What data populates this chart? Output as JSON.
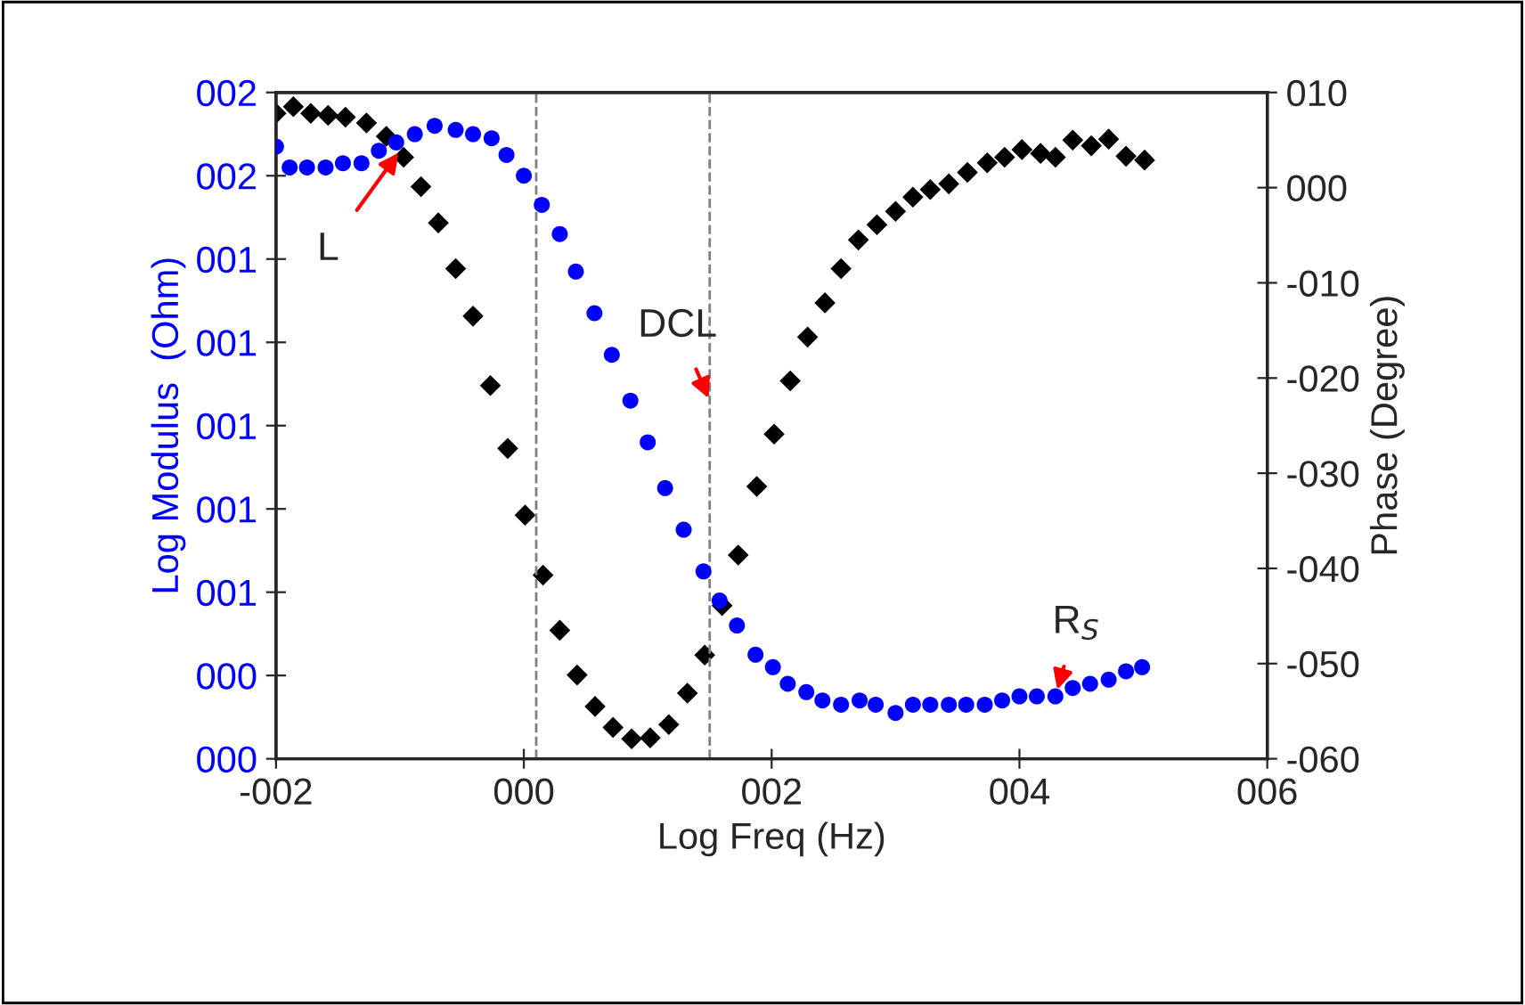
{
  "chart_data": {
    "type": "scatter",
    "xlabel": "Log Freq (Hz)",
    "ylabel": "Log Modulus  (Ohm)",
    "y2label": "Phase (Degree)",
    "xlim": [
      -2,
      6
    ],
    "xticks": [
      {
        "value": -2,
        "label": "-002"
      },
      {
        "value": 0,
        "label": "000"
      },
      {
        "value": 2,
        "label": "002"
      },
      {
        "value": 4,
        "label": "004"
      },
      {
        "value": 6,
        "label": "006"
      }
    ],
    "ylim": [
      0.2,
      1.8
    ],
    "yticks": [
      {
        "value": 0.2,
        "label": "000"
      },
      {
        "value": 0.4,
        "label": "000"
      },
      {
        "value": 0.6,
        "label": "001"
      },
      {
        "value": 0.8,
        "label": "001"
      },
      {
        "value": 1.0,
        "label": "001"
      },
      {
        "value": 1.2,
        "label": "001"
      },
      {
        "value": 1.4,
        "label": "001"
      },
      {
        "value": 1.6,
        "label": "002"
      },
      {
        "value": 1.8,
        "label": "002"
      }
    ],
    "y2lim": [
      -60,
      10
    ],
    "y2ticks": [
      {
        "value": -60,
        "label": "-060"
      },
      {
        "value": -50,
        "label": "-050"
      },
      {
        "value": -40,
        "label": "-040"
      },
      {
        "value": -30,
        "label": "-030"
      },
      {
        "value": -20,
        "label": "-020"
      },
      {
        "value": -10,
        "label": "-010"
      },
      {
        "value": 0,
        "label": "000"
      },
      {
        "value": 10,
        "label": "010"
      }
    ],
    "grid": false,
    "legend": false,
    "series": [
      {
        "color": "#0000ff",
        "marker": "circle",
        "axis": "y",
        "x": [
          -2.0,
          -1.89,
          -1.75,
          -1.6,
          -1.46,
          -1.31,
          -1.17,
          -1.03,
          -0.88,
          -0.72,
          -0.55,
          -0.41,
          -0.26,
          -0.14,
          0.0,
          0.145,
          0.29,
          0.42,
          0.57,
          0.71,
          0.86,
          1.0,
          1.14,
          1.29,
          1.45,
          1.58,
          1.72,
          1.87,
          2.01,
          2.13,
          2.28,
          2.41,
          2.56,
          2.71,
          2.84,
          3.0,
          3.14,
          3.28,
          3.43,
          3.57,
          3.72,
          3.86,
          4.0,
          4.14,
          4.29,
          4.43,
          4.57,
          4.72,
          4.86,
          4.99
        ],
        "values": [
          1.67,
          1.62,
          1.62,
          1.62,
          1.63,
          1.63,
          1.66,
          1.68,
          1.7,
          1.72,
          1.71,
          1.7,
          1.69,
          1.65,
          1.6,
          1.53,
          1.46,
          1.37,
          1.27,
          1.17,
          1.06,
          0.96,
          0.85,
          0.75,
          0.65,
          0.58,
          0.52,
          0.45,
          0.42,
          0.38,
          0.36,
          0.34,
          0.33,
          0.34,
          0.33,
          0.31,
          0.33,
          0.33,
          0.33,
          0.33,
          0.33,
          0.34,
          0.35,
          0.35,
          0.35,
          0.37,
          0.38,
          0.39,
          0.41,
          0.42
        ]
      },
      {
        "color": "#000000",
        "marker": "diamond",
        "axis": "y2",
        "x": [
          -2.0,
          -1.86,
          -1.72,
          -1.58,
          -1.44,
          -1.27,
          -1.11,
          -0.97,
          -0.83,
          -0.69,
          -0.55,
          -0.41,
          -0.27,
          -0.13,
          0.01,
          0.155,
          0.29,
          0.43,
          0.575,
          0.72,
          0.87,
          1.02,
          1.17,
          1.32,
          1.46,
          1.6,
          1.73,
          1.88,
          2.02,
          2.15,
          2.29,
          2.43,
          2.56,
          2.7,
          2.85,
          3.0,
          3.14,
          3.28,
          3.43,
          3.58,
          3.74,
          3.88,
          4.02,
          4.17,
          4.29,
          4.43,
          4.58,
          4.72,
          4.86,
          5.01
        ],
        "values": [
          7.8,
          8.5,
          7.8,
          7.6,
          7.4,
          6.8,
          5.4,
          3.2,
          0.1,
          -3.7,
          -8.5,
          -13.5,
          -20.8,
          -27.4,
          -34.4,
          -40.7,
          -46.5,
          -51.2,
          -54.5,
          -56.7,
          -57.9,
          -57.8,
          -56.4,
          -53.1,
          -49.1,
          -43.9,
          -38.6,
          -31.4,
          -25.9,
          -20.3,
          -15.7,
          -12.1,
          -8.5,
          -5.5,
          -3.9,
          -2.5,
          -1.0,
          -0.2,
          0.4,
          1.6,
          2.6,
          3.2,
          4.0,
          3.6,
          3.2,
          5.0,
          4.4,
          5.1,
          3.3,
          2.9
        ]
      }
    ],
    "ref_lines": [
      {
        "axis": "x",
        "value": 0.1,
        "color": "#808080",
        "line_style": "dashed"
      },
      {
        "axis": "x",
        "value": 1.5,
        "color": "#808080",
        "line_style": "dashed"
      }
    ],
    "annotations": [
      {
        "text": "L",
        "x": -1.0,
        "y": 1.66
      },
      {
        "text": "DCL",
        "x": 1.5,
        "y": 1.06
      },
      {
        "text": "R$_{S}$",
        "x": 4.3,
        "y": 0.36
      }
    ]
  }
}
